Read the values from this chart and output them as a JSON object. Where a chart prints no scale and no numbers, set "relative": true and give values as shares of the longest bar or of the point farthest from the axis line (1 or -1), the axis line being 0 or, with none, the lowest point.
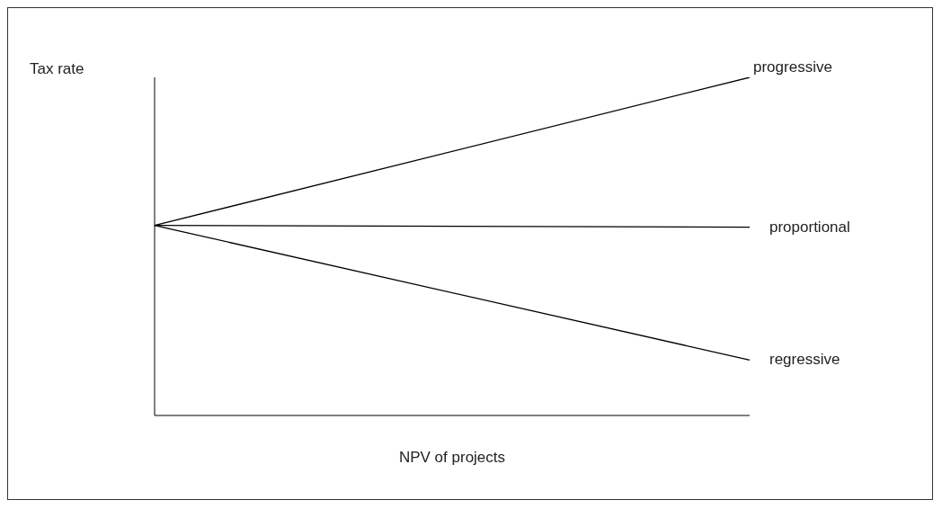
{
  "chart_data": {
    "type": "line",
    "relative": true,
    "xlabel": "NPV of projects",
    "ylabel": "Tax rate",
    "categories": [
      null,
      null
    ],
    "series": [
      {
        "name": "progressive",
        "color": "#000000",
        "values": [
          0.562,
          1
        ]
      },
      {
        "name": "proportional",
        "color": "#000000",
        "values": [
          0.562,
          0.557
        ]
      },
      {
        "name": "regressive",
        "color": "#000000",
        "values": [
          0.562,
          0.164
        ]
      }
    ]
  }
}
